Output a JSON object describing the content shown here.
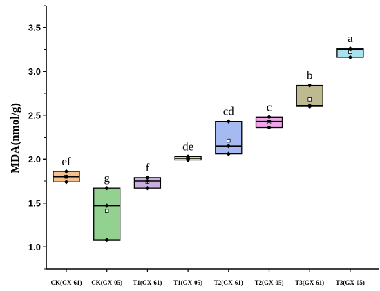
{
  "chart_data": {
    "type": "box",
    "title": "",
    "xlabel": "",
    "ylabel": "MDA(nmol/g)",
    "ylim": [
      0.75,
      3.75
    ],
    "yticks": [
      "1.0",
      "1.5",
      "2.0",
      "2.5",
      "3.0",
      "3.5"
    ],
    "grid": false,
    "categories": [
      "CK(GX-61)",
      "CK(GX-05)",
      "T1(GX-61)",
      "T1(GX-05)",
      "T2(GX-61)",
      "T2(GX-05)",
      "T3(GX-61)",
      "T3(GX-05)"
    ],
    "groups": [
      {
        "category": "CK(GX-61)",
        "q1": 1.74,
        "median": 1.8,
        "q3": 1.86,
        "mean": 1.8,
        "points": [
          1.74,
          1.8,
          1.86
        ],
        "letter": "ef",
        "color": "#f7c08a"
      },
      {
        "category": "CK(GX-05)",
        "q1": 1.08,
        "median": 1.47,
        "q3": 1.67,
        "mean": 1.41,
        "points": [
          1.08,
          1.47,
          1.67
        ],
        "letter": "g",
        "color": "#92d190"
      },
      {
        "category": "T1(GX-61)",
        "q1": 1.67,
        "median": 1.75,
        "q3": 1.79,
        "mean": 1.74,
        "points": [
          1.67,
          1.75,
          1.79
        ],
        "letter": "f",
        "color": "#c7b0dd"
      },
      {
        "category": "T1(GX-05)",
        "q1": 1.99,
        "median": 2.01,
        "q3": 2.03,
        "mean": 2.01,
        "points": [
          1.99,
          2.01,
          2.03
        ],
        "letter": "de",
        "color": "#f3f08e"
      },
      {
        "category": "T2(GX-61)",
        "q1": 2.06,
        "median": 2.15,
        "q3": 2.43,
        "mean": 2.21,
        "points": [
          2.06,
          2.15,
          2.43
        ],
        "letter": "cd",
        "color": "#a6baf2"
      },
      {
        "category": "T2(GX-05)",
        "q1": 2.36,
        "median": 2.43,
        "q3": 2.48,
        "mean": 2.42,
        "points": [
          2.36,
          2.43,
          2.48
        ],
        "letter": "c",
        "color": "#f1a6ea"
      },
      {
        "category": "T3(GX-61)",
        "q1": 2.6,
        "median": 2.61,
        "q3": 2.84,
        "mean": 2.68,
        "points": [
          2.6,
          2.61,
          2.84
        ],
        "letter": "b",
        "color": "#bdba92"
      },
      {
        "category": "T3(GX-05)",
        "q1": 3.16,
        "median": 3.25,
        "q3": 3.26,
        "mean": 3.22,
        "points": [
          3.16,
          3.25,
          3.26
        ],
        "letter": "a",
        "color": "#a8e2ec"
      }
    ]
  }
}
